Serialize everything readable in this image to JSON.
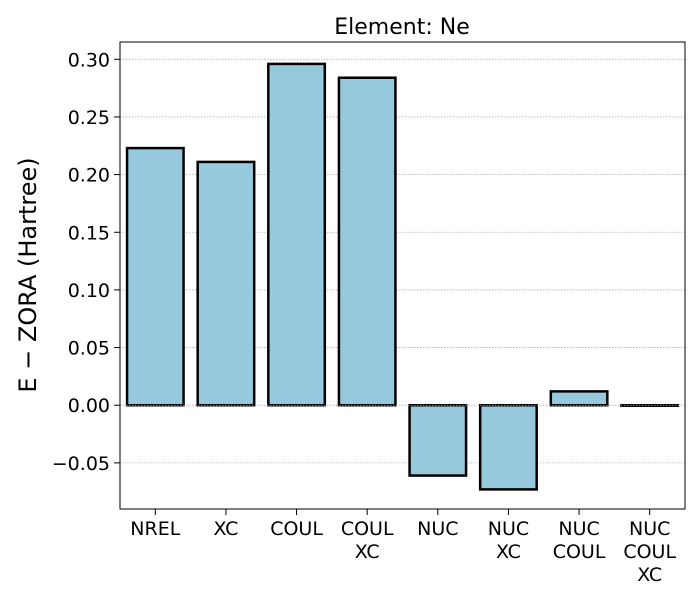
{
  "chart_data": {
    "type": "bar",
    "title": "Element: Ne",
    "ylabel": "E − ZORA (Hartree)",
    "xlabel": "",
    "categories": [
      [
        "NREL"
      ],
      [
        "XC"
      ],
      [
        "COUL"
      ],
      [
        "COUL",
        "XC"
      ],
      [
        "NUC"
      ],
      [
        "NUC",
        "XC"
      ],
      [
        "NUC",
        "COUL"
      ],
      [
        "NUC",
        "COUL",
        "XC"
      ]
    ],
    "values": [
      0.223,
      0.211,
      0.296,
      0.284,
      -0.061,
      -0.073,
      0.012,
      0.0
    ],
    "ylim": [
      -0.09,
      0.315
    ],
    "yticks": [
      -0.05,
      0.0,
      0.05,
      0.1,
      0.15,
      0.2,
      0.25,
      0.3
    ],
    "ytick_labels": [
      "−0.05",
      "0.00",
      "0.05",
      "0.10",
      "0.15",
      "0.20",
      "0.25",
      "0.30"
    ],
    "grid": "y-dotted",
    "bar_color": "#96c9de",
    "edge_color": "#000000",
    "grid_color": "#b0b0b0"
  }
}
